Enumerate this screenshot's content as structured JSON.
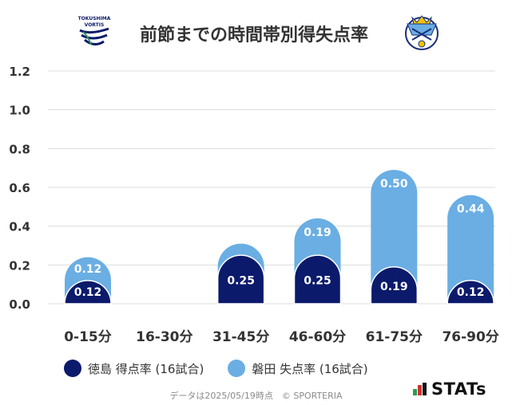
{
  "title": "前節までの時間帯別得失点率",
  "logos": {
    "left_text": [
      "TOKUSHIMA",
      "VORTIS"
    ],
    "right_text": "JUBILO"
  },
  "chart_data": {
    "type": "bar",
    "stacked": true,
    "categories": [
      "0-15分",
      "16-30分",
      "31-45分",
      "46-60分",
      "61-75分",
      "76-90分"
    ],
    "series": [
      {
        "name": "徳島 得点率 (16試合)",
        "color": "#0b1a6b",
        "values": [
          0.12,
          0.0,
          0.25,
          0.25,
          0.19,
          0.12
        ],
        "labels": [
          "0.12",
          "",
          "0.25",
          "0.25",
          "0.19",
          "0.12"
        ]
      },
      {
        "name": "磐田 失点率 (16試合)",
        "color": "#6aaee3",
        "values": [
          0.12,
          0.0,
          0.06,
          0.19,
          0.5,
          0.44
        ],
        "labels": [
          "0.12",
          "",
          "",
          "0.19",
          "0.50",
          "0.44"
        ]
      }
    ],
    "ylim": [
      0,
      1.2
    ],
    "yticks": [
      "0.0",
      "0.2",
      "0.4",
      "0.6",
      "0.8",
      "1.0",
      "1.2"
    ],
    "grid": true,
    "legend_position": "bottom"
  },
  "footer": "データは2025/05/19時点　© SPORTERIA",
  "brand": "STATs",
  "colors": {
    "home": "#0b1a6b",
    "away": "#6aaee3",
    "grid": "#dddddd",
    "text": "#333333"
  }
}
